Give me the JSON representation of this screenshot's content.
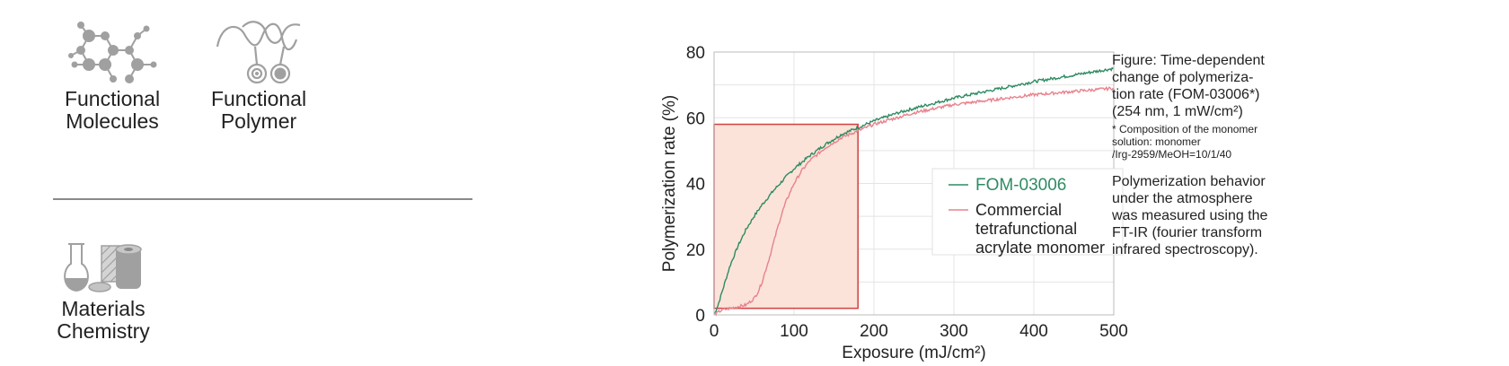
{
  "categories": {
    "molecules": {
      "line1": "Functional",
      "line2": "Molecules",
      "icon": "molecule-icon"
    },
    "polymer": {
      "line1": "Functional",
      "line2": "Polymer",
      "icon": "polymer-icon"
    },
    "materials": {
      "line1": "Materials",
      "line2": "Chemistry",
      "icon": "flask-icon"
    }
  },
  "caption": {
    "title_line1": "Figure: Time-dependent",
    "title_line2": "change of polymeriza-",
    "title_line3": "tion rate (FOM-03006*)",
    "title_line4": "(254 nm, 1 mW/cm²)",
    "note_line1": "* Composition of the monomer",
    "note_line2": "solution: monomer",
    "note_line3": "/Irg-2959/MeOH=10/1/40",
    "desc_line1": "Polymerization behavior",
    "desc_line2": "under the atmosphere",
    "desc_line3": "was measured using the",
    "desc_line4": "FT-IR (fourier transform",
    "desc_line5": "infrared spectroscopy)."
  },
  "chart_data": {
    "type": "line",
    "xlabel": "Exposure (mJ/cm²)",
    "ylabel": "Polymerization rate (%)",
    "xlim": [
      0,
      500
    ],
    "ylim": [
      0,
      80
    ],
    "xticks": [
      0,
      100,
      200,
      300,
      400,
      500
    ],
    "yticks": [
      0,
      20,
      40,
      60,
      80
    ],
    "grid": true,
    "legend_position": "right",
    "highlight_region": {
      "x": [
        0,
        180
      ],
      "y": [
        2,
        58
      ]
    },
    "series": [
      {
        "name": "FOM-03006",
        "color": "#2e8b62",
        "x": [
          0,
          5,
          10,
          20,
          30,
          40,
          50,
          60,
          75,
          90,
          100,
          120,
          140,
          160,
          180,
          200,
          230,
          260,
          300,
          350,
          400,
          450,
          500
        ],
        "y": [
          0,
          3,
          7,
          15,
          21,
          26,
          30,
          33.5,
          38,
          42,
          44.5,
          48.5,
          52,
          55,
          57,
          59,
          61.5,
          63.5,
          66,
          68.5,
          71,
          73,
          75
        ]
      },
      {
        "name": "Commercial tetrafunctional acrylate monomer",
        "color": "#e8828c",
        "x": [
          0,
          10,
          20,
          30,
          40,
          50,
          55,
          60,
          65,
          70,
          75,
          80,
          85,
          90,
          100,
          110,
          120,
          140,
          160,
          180,
          200,
          250,
          300,
          350,
          400,
          450,
          500
        ],
        "y": [
          0,
          1.5,
          2,
          2.5,
          3,
          5,
          7,
          10,
          14,
          18,
          22.5,
          27,
          31,
          34.5,
          40,
          44,
          47,
          51,
          54,
          56,
          58,
          61.5,
          64,
          65.5,
          67,
          68,
          69
        ]
      }
    ],
    "legend": [
      "FOM-03006",
      "Commercial tetrafunctional acrylate monomer"
    ]
  }
}
